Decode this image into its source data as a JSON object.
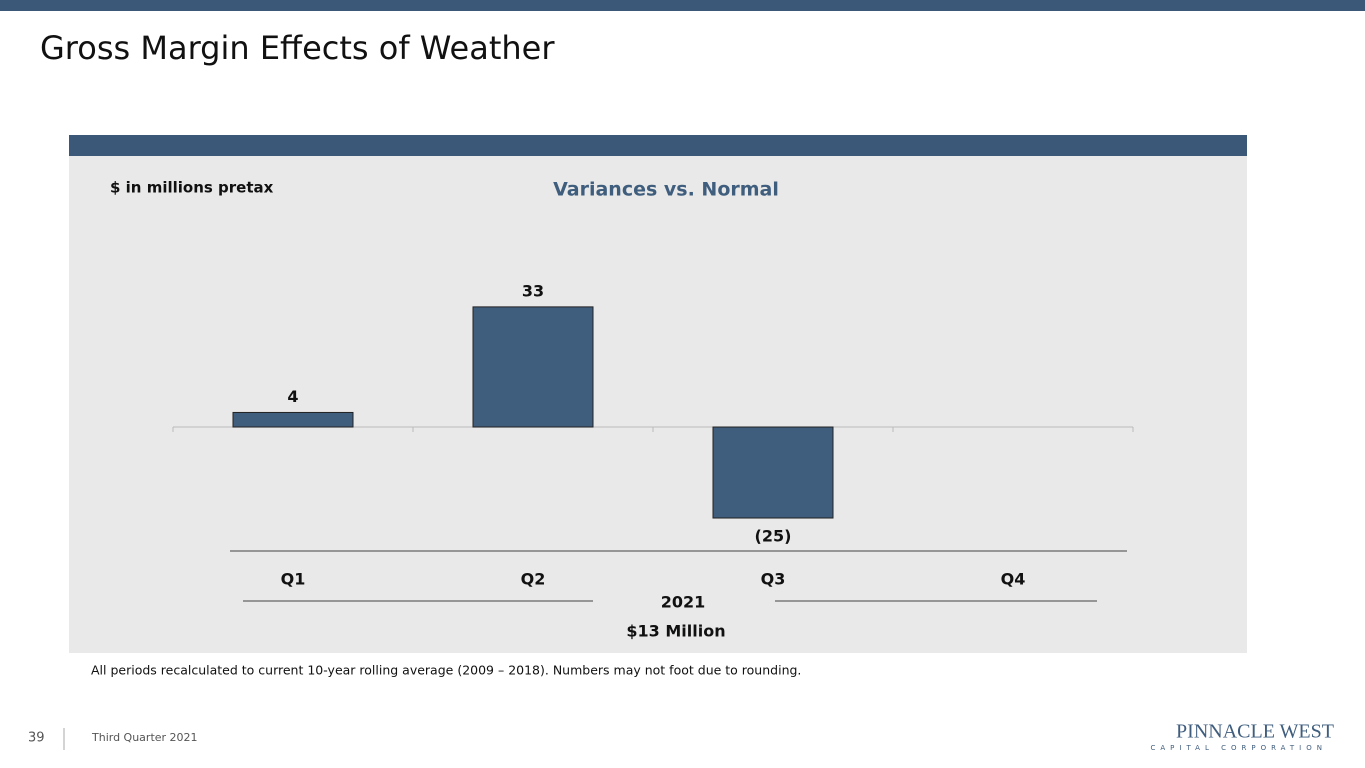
{
  "slide": {
    "title": "Gross Margin Effects of Weather",
    "footnote": "All periods recalculated to current 10-year rolling average (2009 – 2018). Numbers may not foot due to rounding.",
    "page_number": "39",
    "footer": "Third Quarter 2021",
    "logo": "PINNACLE WEST",
    "logo_sub": "CAPITAL CORPORATION"
  },
  "chart_data": {
    "type": "bar",
    "title": "Variances vs. Normal",
    "units_note": "$ in millions pretax",
    "categories": [
      "Q1",
      "Q2",
      "Q3",
      "Q4"
    ],
    "values": [
      4,
      33,
      -25,
      null
    ],
    "value_labels": [
      "4",
      "33",
      "(25)",
      null
    ],
    "color": "#3f5d7d",
    "group_label": "2021",
    "total": "$13 Million",
    "ylim": [
      -32,
      50
    ]
  }
}
